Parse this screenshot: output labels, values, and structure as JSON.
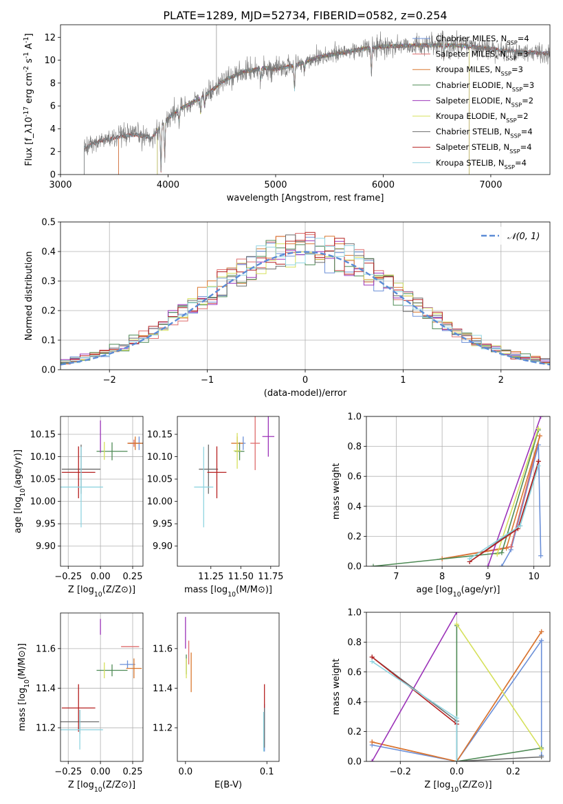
{
  "chart_data": [
    {
      "type": "line",
      "title": "PLATE=1289, MJD=52734, FIBERID=0582, z=0.254",
      "xlabel": "wavelength [Angstrom, rest frame]",
      "ylabel": "Flux [f_λ10^{-17} erg cm^{-2} s^{-1} A^{-1}]",
      "xlim": [
        3000,
        7550
      ],
      "ylim": [
        0,
        13.1
      ],
      "xticks": [
        "3000",
        "4000",
        "5000",
        "6000",
        "7000"
      ],
      "yticks": [
        "0",
        "2",
        "4",
        "6",
        "8",
        "10",
        "12"
      ],
      "legend_position": "right",
      "series": [
        {
          "name": "Chabrier MILES, N_SSP=4",
          "color": "#6a8fd8",
          "start": 3540,
          "end": 7550
        },
        {
          "name": "Salpeter MILES, N_SSP=3",
          "color": "#de6b6b",
          "start": 3540,
          "end": 7550
        },
        {
          "name": "Kroupa MILES, N_SSP=3",
          "color": "#d9772e",
          "start": 3540,
          "end": 7550
        },
        {
          "name": "Chabrier ELODIE, N_SSP=3",
          "color": "#4e8a55",
          "start": 3900,
          "end": 6800
        },
        {
          "name": "Salpeter ELODIE, N_SSP=2",
          "color": "#9b32b8",
          "start": 3900,
          "end": 6800
        },
        {
          "name": "Kroupa ELODIE, N_SSP=2",
          "color": "#d5e05a",
          "start": 3900,
          "end": 6800
        },
        {
          "name": "Chabrier STELIB, N_SSP=4",
          "color": "#6b6b6b",
          "start": 3220,
          "end": 7550
        },
        {
          "name": "Salpeter STELIB, N_SSP=4",
          "color": "#b51f1f",
          "start": 3220,
          "end": 7550
        },
        {
          "name": "Kroupa STELIB, N_SSP=4",
          "color": "#8fd4e0",
          "start": 3220,
          "end": 7550
        }
      ],
      "continuum_points": [
        [
          3220,
          2.3
        ],
        [
          3300,
          2.7
        ],
        [
          3400,
          3.0
        ],
        [
          3550,
          3.3
        ],
        [
          3700,
          3.5
        ],
        [
          3850,
          3.2
        ],
        [
          3950,
          4.5
        ],
        [
          4000,
          4.9
        ],
        [
          4100,
          5.7
        ],
        [
          4250,
          6.4
        ],
        [
          4400,
          7.3
        ],
        [
          4500,
          8.1
        ],
        [
          4700,
          9.0
        ],
        [
          4900,
          9.3
        ],
        [
          5000,
          9.2
        ],
        [
          5200,
          9.6
        ],
        [
          5400,
          10.3
        ],
        [
          5600,
          10.6
        ],
        [
          5800,
          11.0
        ],
        [
          6000,
          11.2
        ],
        [
          6300,
          11.3
        ],
        [
          6700,
          11.3
        ],
        [
          7000,
          11.0
        ],
        [
          7300,
          10.7
        ],
        [
          7550,
          10.6
        ]
      ],
      "absorption_features": [
        [
          3934,
          4.0
        ],
        [
          3969,
          3.2
        ],
        [
          4102,
          1.2
        ],
        [
          4304,
          1.4
        ],
        [
          4340,
          1.0
        ],
        [
          4861,
          1.0
        ],
        [
          5175,
          2.2
        ],
        [
          5270,
          0.8
        ],
        [
          5890,
          2.3
        ],
        [
          6563,
          1.1
        ]
      ]
    },
    {
      "type": "histogram",
      "xlabel": "(data-model)/error",
      "ylabel": "Normed distribution",
      "xlim": [
        -2.5,
        2.5
      ],
      "ylim": [
        0,
        0.5
      ],
      "xticks": [
        "−2",
        "−1",
        "0",
        "1",
        "2"
      ],
      "yticks": [
        "0.0",
        "0.1",
        "0.2",
        "0.3",
        "0.4",
        "0.5"
      ],
      "bin_width": 0.1,
      "legend": "𝒩(0, 1)",
      "reference_color": "#5b8bd6"
    },
    {
      "type": "errorbar",
      "xlabel": "Z [log10(Z/Z⊙)]",
      "ylabel": "age  [log10(age/yr)]",
      "xlim": [
        -0.31,
        0.33
      ],
      "ylim": [
        9.855,
        10.19
      ],
      "xticks": [
        "−0.25",
        "0.00",
        "0.25"
      ],
      "yticks": [
        "9.90",
        "9.95",
        "10.00",
        "10.05",
        "10.10",
        "10.15"
      ],
      "points": [
        {
          "color": "#6a8fd8",
          "x": 0.3,
          "y": 10.13,
          "xerr": 0.08,
          "yerr": 0.015
        },
        {
          "color": "#de6b6b",
          "x": 0.26,
          "y": 10.13,
          "xerr": 0.05,
          "yerr": 0.008
        },
        {
          "color": "#d9772e",
          "x": 0.27,
          "y": 10.13,
          "xerr": 0.06,
          "yerr": 0.015
        },
        {
          "color": "#4e8a55",
          "x": 0.09,
          "y": 10.112,
          "xerr": 0.12,
          "yerr": 0.02
        },
        {
          "color": "#9b32b8",
          "x": 0.0,
          "y": 10.145,
          "xerr": 0.0,
          "yerr": 0.036
        },
        {
          "color": "#d5e05a",
          "x": 0.03,
          "y": 10.113,
          "xerr": 0.0,
          "yerr": 0.02
        },
        {
          "color": "#6b6b6b",
          "x": -0.15,
          "y": 10.072,
          "xerr": 0.15,
          "yerr": 0.055
        },
        {
          "color": "#b51f1f",
          "x": -0.17,
          "y": 10.065,
          "xerr": 0.13,
          "yerr": 0.058
        },
        {
          "color": "#8fd4e0",
          "x": -0.15,
          "y": 10.032,
          "xerr": 0.17,
          "yerr": 0.09
        }
      ]
    },
    {
      "type": "errorbar",
      "xlabel": "mass [log10(M/M⊙)]",
      "ylabel": "",
      "xlim": [
        10.97,
        11.82
      ],
      "ylim": [
        9.855,
        10.19
      ],
      "xticks": [
        "11.25",
        "11.50",
        "11.75"
      ],
      "yticks": [
        "9.90",
        "9.95",
        "10.00",
        "10.05",
        "10.10",
        "10.15"
      ],
      "points": [
        {
          "color": "#6a8fd8",
          "x": 11.52,
          "y": 10.13,
          "xerr": 0.02,
          "yerr": 0.015
        },
        {
          "color": "#de6b6b",
          "x": 11.62,
          "y": 10.13,
          "xerr": 0.04,
          "yerr": 0.06
        },
        {
          "color": "#d9772e",
          "x": 11.47,
          "y": 10.13,
          "xerr": 0.05,
          "yerr": 0.015
        },
        {
          "color": "#4e8a55",
          "x": 11.49,
          "y": 10.112,
          "xerr": 0.04,
          "yerr": 0.02
        },
        {
          "color": "#9b32b8",
          "x": 11.73,
          "y": 10.145,
          "xerr": 0.05,
          "yerr": 0.045
        },
        {
          "color": "#d5e05a",
          "x": 11.47,
          "y": 10.113,
          "xerr": 0.03,
          "yerr": 0.04
        },
        {
          "color": "#6b6b6b",
          "x": 11.23,
          "y": 10.072,
          "xerr": 0.08,
          "yerr": 0.055
        },
        {
          "color": "#b51f1f",
          "x": 11.3,
          "y": 10.065,
          "xerr": 0.08,
          "yerr": 0.058
        },
        {
          "color": "#8fd4e0",
          "x": 11.19,
          "y": 10.032,
          "xerr": 0.08,
          "yerr": 0.09
        }
      ]
    },
    {
      "type": "line",
      "xlabel": "age  [log10(age/yr)]",
      "ylabel": "mass weight",
      "xlim": [
        6.35,
        10.35
      ],
      "ylim": [
        0,
        1.0
      ],
      "xticks": [
        "7",
        "8",
        "9",
        "10"
      ],
      "yticks": [
        "0.0",
        "0.2",
        "0.4",
        "0.6",
        "0.8",
        "1.0"
      ],
      "series": [
        {
          "color": "#6a8fd8",
          "points": [
            [
              9.3,
              0.0
            ],
            [
              9.5,
              0.11
            ],
            [
              10.1,
              0.81
            ],
            [
              10.15,
              0.07
            ]
          ]
        },
        {
          "color": "#de6b6b",
          "points": [
            [
              8.0,
              0.05
            ],
            [
              9.5,
              0.13
            ],
            [
              10.13,
              0.87
            ]
          ]
        },
        {
          "color": "#d9772e",
          "points": [
            [
              8.0,
              0.05
            ],
            [
              9.4,
              0.12
            ],
            [
              10.13,
              0.87
            ]
          ]
        },
        {
          "color": "#4e8a55",
          "points": [
            [
              6.5,
              0.0
            ],
            [
              9.3,
              0.09
            ],
            [
              10.1,
              0.91
            ]
          ]
        },
        {
          "color": "#9b32b8",
          "points": [
            [
              9.0,
              0.0
            ],
            [
              10.15,
              1.0
            ]
          ]
        },
        {
          "color": "#d5e05a",
          "points": [
            [
              9.2,
              0.08
            ],
            [
              10.1,
              0.92
            ]
          ]
        },
        {
          "color": "#6b6b6b",
          "points": [
            [
              8.6,
              0.03
            ],
            [
              9.7,
              0.27
            ],
            [
              10.1,
              0.7
            ]
          ]
        },
        {
          "color": "#b51f1f",
          "points": [
            [
              8.6,
              0.03
            ],
            [
              9.65,
              0.25
            ],
            [
              10.1,
              0.7
            ]
          ]
        },
        {
          "color": "#8fd4e0",
          "points": [
            [
              8.6,
              0.05
            ],
            [
              9.7,
              0.27
            ],
            [
              10.1,
              0.67
            ]
          ]
        }
      ]
    },
    {
      "type": "errorbar",
      "xlabel": "Z [log10(Z/Z⊙)]",
      "ylabel": "mass [log10(M/M⊙)]",
      "xlim": [
        -0.31,
        0.33
      ],
      "ylim": [
        11.03,
        11.78
      ],
      "xticks": [
        "−0.25",
        "0.00",
        "0.25"
      ],
      "yticks": [
        "11.2",
        "11.4",
        "11.6"
      ],
      "points": [
        {
          "color": "#6a8fd8",
          "x": 0.21,
          "y": 11.52,
          "xerr": 0.06,
          "yerr": 0.02
        },
        {
          "color": "#de6b6b",
          "x": 0.23,
          "y": 11.61,
          "xerr": 0.07,
          "yerr": 0.0
        },
        {
          "color": "#d9772e",
          "x": 0.26,
          "y": 11.5,
          "xerr": 0.06,
          "yerr": 0.05
        },
        {
          "color": "#4e8a55",
          "x": 0.09,
          "y": 11.49,
          "xerr": 0.12,
          "yerr": 0.03
        },
        {
          "color": "#9b32b8",
          "x": 0.0,
          "y": 11.71,
          "xerr": 0.0,
          "yerr": 0.04
        },
        {
          "color": "#d5e05a",
          "x": 0.03,
          "y": 11.49,
          "xerr": 0.0,
          "yerr": 0.04
        },
        {
          "color": "#6b6b6b",
          "x": -0.16,
          "y": 11.23,
          "xerr": 0.15,
          "yerr": 0.06
        },
        {
          "color": "#b51f1f",
          "x": -0.17,
          "y": 11.3,
          "xerr": 0.13,
          "yerr": 0.12
        },
        {
          "color": "#8fd4e0",
          "x": -0.16,
          "y": 11.19,
          "xerr": 0.18,
          "yerr": 0.1
        }
      ]
    },
    {
      "type": "errorbar",
      "xlabel": "E(B-V)",
      "ylabel": "",
      "xlim": [
        -0.01,
        0.115
      ],
      "ylim": [
        11.03,
        11.78
      ],
      "xticks": [
        "0.0",
        "0.1"
      ],
      "yticks": [
        "11.2",
        "11.4",
        "11.6"
      ],
      "points": [
        {
          "color": "#6a8fd8",
          "x": 0.097,
          "y": 11.2,
          "xerr": 0.0,
          "yerr": 0.12
        },
        {
          "color": "#de6b6b",
          "x": 0.004,
          "y": 11.58,
          "xerr": 0.0,
          "yerr": 0.06
        },
        {
          "color": "#d9772e",
          "x": 0.007,
          "y": 11.48,
          "xerr": 0.0,
          "yerr": 0.1
        },
        {
          "color": "#4e8a55",
          "x": 0.001,
          "y": 11.52,
          "xerr": 0.0,
          "yerr": 0.05
        },
        {
          "color": "#9b32b8",
          "x": 0.0,
          "y": 11.68,
          "xerr": 0.0,
          "yerr": 0.08
        },
        {
          "color": "#d5e05a",
          "x": 0.001,
          "y": 11.5,
          "xerr": 0.0,
          "yerr": 0.05
        },
        {
          "color": "#6b6b6b",
          "x": 0.097,
          "y": 11.2,
          "xerr": 0.0,
          "yerr": 0.1
        },
        {
          "color": "#b51f1f",
          "x": 0.097,
          "y": 11.36,
          "xerr": 0.0,
          "yerr": 0.06
        },
        {
          "color": "#8fd4e0",
          "x": 0.096,
          "y": 11.18,
          "xerr": 0.0,
          "yerr": 0.1
        }
      ]
    },
    {
      "type": "line",
      "xlabel": "Z [log10(Z/Z⊙)]",
      "ylabel": "mass weight",
      "xlim": [
        -0.32,
        0.33
      ],
      "ylim": [
        0,
        1.0
      ],
      "xticks": [
        "−0.2",
        "0.0",
        "0.2"
      ],
      "yticks": [
        "0.0",
        "0.2",
        "0.4",
        "0.6",
        "0.8",
        "1.0"
      ],
      "series": [
        {
          "color": "#6a8fd8",
          "points": [
            [
              -0.3,
              0.11
            ],
            [
              0.0,
              0.0
            ],
            [
              0.3,
              0.81
            ],
            [
              0.3,
              0.04
            ]
          ]
        },
        {
          "color": "#de6b6b",
          "points": [
            [
              -0.3,
              0.13
            ],
            [
              0.0,
              0.0
            ],
            [
              0.3,
              0.87
            ]
          ]
        },
        {
          "color": "#d9772e",
          "points": [
            [
              -0.3,
              0.13
            ],
            [
              0.0,
              0.0
            ],
            [
              0.3,
              0.87
            ]
          ]
        },
        {
          "color": "#4e8a55",
          "points": [
            [
              0.0,
              0.91
            ],
            [
              0.0,
              0.0
            ],
            [
              0.3,
              0.09
            ]
          ]
        },
        {
          "color": "#9b32b8",
          "points": [
            [
              -0.3,
              0.0
            ],
            [
              0.0,
              1.0
            ]
          ]
        },
        {
          "color": "#d5e05a",
          "points": [
            [
              0.0,
              0.92
            ],
            [
              0.3,
              0.08
            ]
          ]
        },
        {
          "color": "#6b6b6b",
          "points": [
            [
              -0.3,
              0.7
            ],
            [
              0.0,
              0.27
            ],
            [
              0.0,
              0.0
            ],
            [
              0.3,
              0.03
            ]
          ]
        },
        {
          "color": "#b51f1f",
          "points": [
            [
              -0.3,
              0.7
            ],
            [
              0.0,
              0.25
            ]
          ]
        },
        {
          "color": "#8fd4e0",
          "points": [
            [
              -0.3,
              0.67
            ],
            [
              0.0,
              0.29
            ],
            [
              0.0,
              0.0
            ]
          ]
        }
      ]
    }
  ]
}
